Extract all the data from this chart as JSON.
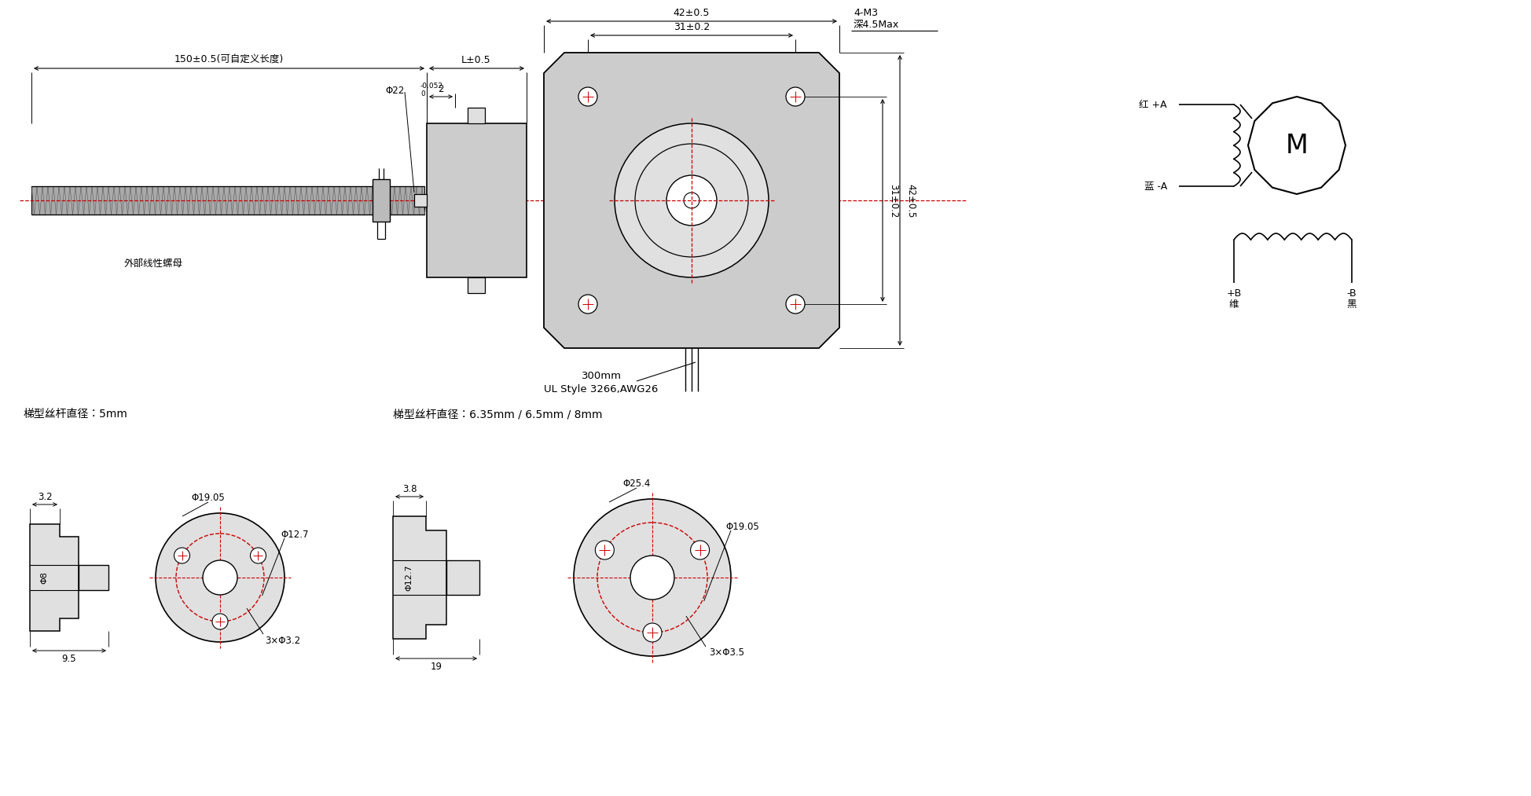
{
  "bg_color": "#ffffff",
  "lc": "#000000",
  "rc": "#cc0000",
  "gc": "#cccccc",
  "lgc": "#e0e0e0",
  "labels": {
    "screw_len": "150±0.5(可自定义长度)",
    "L_dim": "L±0.5",
    "w42": "42±0.5",
    "w31": "31±0.2",
    "hole4m3": "4-M3",
    "depth": "深4.5Max",
    "dia22": "Φ22",
    "dim2": "2",
    "nut_label": "外部线性螺母",
    "cable": "300mm",
    "cable2": "UL Style 3266,AWG26",
    "side31": "31±0.2",
    "side42": "42±0.5",
    "red_A": "红 +A",
    "blue_A": "蓝 -A",
    "plus_B": "+B",
    "green_ch": "维",
    "minus_B": "-B",
    "black_ch": "黑",
    "M_label": "M",
    "bl_title": "梯型丝杆直径：5mm",
    "d32": "3.2",
    "phi1905_l": "Φ19.05",
    "phi127_l": "Φ12.7",
    "phi8_l": "Φ8",
    "d95": "9.5",
    "hole32": "3×Φ3.2",
    "br_title": "梯型丝杆直径：6.35mm / 6.5mm / 8mm",
    "d38": "3.8",
    "phi254": "Φ25.4",
    "phi1905_r": "Φ19.05",
    "phi127_r": "Φ12.7",
    "d19": "19",
    "hole35": "3×Φ3.5",
    "tol_top": "0",
    "tol_bot": "-0.052"
  }
}
